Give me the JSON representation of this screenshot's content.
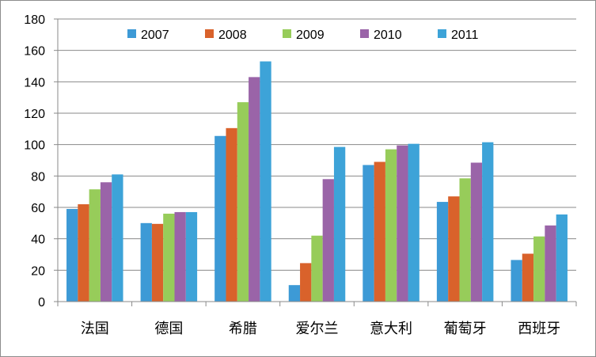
{
  "chart_data": {
    "type": "bar",
    "title": "",
    "xlabel": "",
    "ylabel": "",
    "categories": [
      "法国",
      "德国",
      "希腊",
      "爱尔兰",
      "意大利",
      "葡萄牙",
      "西班牙"
    ],
    "series": [
      {
        "name": "2007",
        "color": "#3d9ad6",
        "values": [
          59,
          50,
          105.5,
          10.5,
          87,
          63.5,
          26.5
        ]
      },
      {
        "name": "2008",
        "color": "#d9622b",
        "values": [
          62,
          49.5,
          110.5,
          24.5,
          89,
          67,
          30.5
        ]
      },
      {
        "name": "2009",
        "color": "#97cc5a",
        "values": [
          71.5,
          56,
          127,
          42,
          97,
          78.5,
          41.5
        ]
      },
      {
        "name": "2010",
        "color": "#9a64a8",
        "values": [
          76,
          57,
          143,
          78,
          99.5,
          88.5,
          48.5
        ]
      },
      {
        "name": "2011",
        "color": "#3da3d8",
        "values": [
          81,
          57,
          153,
          98.5,
          100.5,
          101.5,
          55.5
        ]
      }
    ],
    "ylim": [
      0,
      180
    ],
    "yticks": [
      0,
      20,
      40,
      60,
      80,
      100,
      120,
      140,
      160,
      180
    ],
    "grid": true,
    "legend_position": "top"
  }
}
